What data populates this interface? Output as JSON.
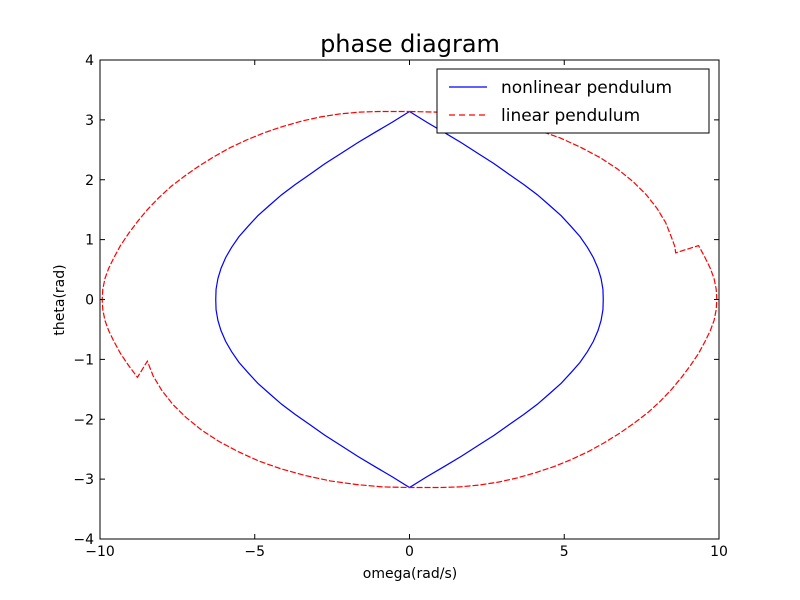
{
  "chart_data": {
    "type": "line",
    "title": "phase diagram",
    "xlabel": "omega(rad/s)",
    "ylabel": "theta(rad)",
    "xlim": [
      -10,
      10
    ],
    "ylim": [
      -4,
      4
    ],
    "xticks": [
      -10,
      -5,
      0,
      5,
      10
    ],
    "yticks": [
      -4,
      -3,
      -2,
      -1,
      0,
      1,
      2,
      3,
      4
    ],
    "xtick_labels": [
      "−10",
      "−5",
      "0",
      "5",
      "10"
    ],
    "ytick_labels": [
      "−4",
      "−3",
      "−2",
      "−1",
      "0",
      "1",
      "2",
      "3",
      "4"
    ],
    "grid": false,
    "legend_position": "top-right",
    "series": [
      {
        "name": "nonlinear pendulum",
        "color": "#0000ff",
        "style": "solid",
        "x": [
          0,
          0.56,
          1.12,
          1.67,
          2.21,
          2.73,
          3.22,
          3.69,
          4.13,
          4.53,
          4.9,
          5.22,
          5.51,
          5.75,
          5.94,
          6.09,
          6.19,
          6.25,
          6.26,
          6.25,
          6.19,
          6.09,
          5.94,
          5.75,
          5.51,
          5.22,
          4.9,
          4.53,
          4.13,
          3.69,
          3.22,
          2.73,
          2.21,
          1.67,
          1.12,
          0.56,
          0,
          -0.56,
          -1.12,
          -1.67,
          -2.21,
          -2.73,
          -3.22,
          -3.69,
          -4.13,
          -4.53,
          -4.9,
          -5.22,
          -5.51,
          -5.75,
          -5.94,
          -6.09,
          -6.19,
          -6.25,
          -6.26,
          -6.25,
          -6.19,
          -6.09,
          -5.94,
          -5.75,
          -5.51,
          -5.22,
          -4.9,
          -4.53,
          -4.13,
          -3.69,
          -3.22,
          -2.73,
          -2.21,
          -1.67,
          -1.12,
          -0.56,
          0
        ],
        "y": [
          3.14,
          2.96,
          2.79,
          2.62,
          2.44,
          2.27,
          2.09,
          1.92,
          1.75,
          1.57,
          1.4,
          1.22,
          1.05,
          0.87,
          0.7,
          0.52,
          0.35,
          0.17,
          0,
          -0.17,
          -0.35,
          -0.52,
          -0.7,
          -0.87,
          -1.05,
          -1.22,
          -1.4,
          -1.57,
          -1.75,
          -1.92,
          -2.09,
          -2.27,
          -2.44,
          -2.62,
          -2.79,
          -2.96,
          -3.14,
          -2.96,
          -2.79,
          -2.62,
          -2.44,
          -2.27,
          -2.09,
          -1.92,
          -1.75,
          -1.57,
          -1.4,
          -1.22,
          -1.05,
          -0.87,
          -0.7,
          -0.52,
          -0.35,
          -0.17,
          0,
          0.17,
          0.35,
          0.52,
          0.7,
          0.87,
          1.05,
          1.22,
          1.4,
          1.57,
          1.75,
          1.92,
          2.09,
          2.27,
          2.44,
          2.62,
          2.79,
          2.96,
          3.14
        ]
      },
      {
        "name": "linear pendulum",
        "color": "#ff0000",
        "style": "dashed",
        "x": [
          0,
          0.87,
          1.72,
          2.56,
          3.37,
          4.14,
          4.86,
          5.54,
          6.16,
          6.72,
          7.22,
          7.65,
          8.0,
          8.28,
          8.47,
          8.57,
          8.6,
          9.34,
          9.55,
          9.72,
          9.84,
          9.91,
          9.93,
          9.91,
          9.84,
          9.72,
          9.55,
          9.34,
          9.08,
          8.79,
          8.47,
          8.1,
          7.7,
          7.27,
          6.8,
          6.3,
          5.78,
          5.24,
          4.67,
          4.09,
          3.48,
          2.87,
          2.24,
          1.61,
          0.97,
          0.33,
          0,
          -0.87,
          -1.72,
          -2.56,
          -3.37,
          -4.14,
          -4.86,
          -5.54,
          -6.16,
          -6.72,
          -7.22,
          -7.65,
          -8.0,
          -8.28,
          -8.47,
          -8.79,
          -9.08,
          -9.34,
          -9.55,
          -9.72,
          -9.84,
          -9.91,
          -9.93,
          -9.91,
          -9.84,
          -9.72,
          -9.55,
          -9.34,
          -9.08,
          -8.79,
          -8.47,
          -8.1,
          -7.7,
          -7.27,
          -6.8,
          -6.3,
          -5.78,
          -5.24,
          -4.67,
          -4.09,
          -3.48,
          -2.87,
          -2.24,
          -1.61,
          -0.97,
          -0.33,
          0
        ],
        "y": [
          3.14,
          3.13,
          3.09,
          3.03,
          2.94,
          2.83,
          2.7,
          2.54,
          2.37,
          2.18,
          1.97,
          1.75,
          1.52,
          1.28,
          1.03,
          0.89,
          0.78,
          0.9,
          0.7,
          0.52,
          0.35,
          0.17,
          0,
          -0.17,
          -0.35,
          -0.52,
          -0.7,
          -0.9,
          -1.1,
          -1.3,
          -1.5,
          -1.7,
          -1.89,
          -2.06,
          -2.23,
          -2.39,
          -2.54,
          -2.67,
          -2.79,
          -2.89,
          -2.98,
          -3.05,
          -3.1,
          -3.13,
          -3.14,
          -3.14,
          -3.14,
          -3.13,
          -3.09,
          -3.03,
          -2.94,
          -2.83,
          -2.7,
          -2.54,
          -2.37,
          -2.18,
          -1.97,
          -1.75,
          -1.52,
          -1.28,
          -1.03,
          -1.3,
          -1.1,
          -0.9,
          -0.7,
          -0.52,
          -0.35,
          -0.17,
          0,
          0.17,
          0.35,
          0.52,
          0.7,
          0.9,
          1.1,
          1.3,
          1.5,
          1.7,
          1.89,
          2.06,
          2.23,
          2.39,
          2.54,
          2.67,
          2.79,
          2.89,
          2.98,
          3.05,
          3.1,
          3.13,
          3.14,
          3.14,
          3.14
        ]
      }
    ]
  }
}
